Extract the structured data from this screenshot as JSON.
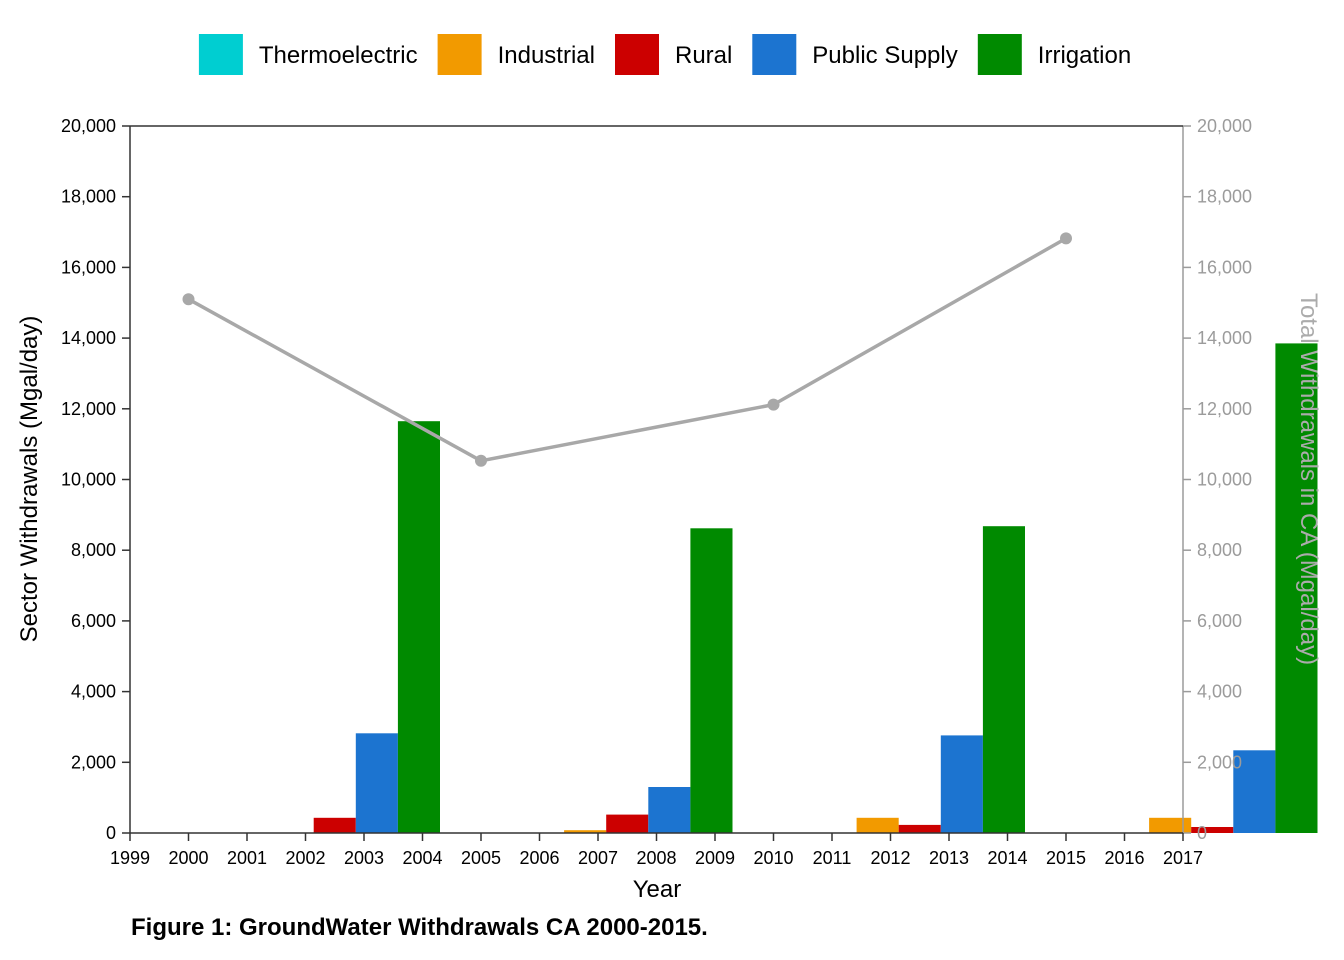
{
  "caption": "Figure 1: GroundWater Withdrawals CA 2000-2015.",
  "chart_data": {
    "type": "bar",
    "title": "",
    "xlabel": "Year",
    "ylabel": "Sector Withdrawals (Mgal/day)",
    "ylabel_right": "Total Withdrawals in CA (Mgal/day)",
    "xlim": [
      1999,
      2017
    ],
    "ylim": [
      0,
      20000
    ],
    "ylim_right": [
      0,
      20000
    ],
    "x_ticks": [
      "1999",
      "2000",
      "2001",
      "2002",
      "2003",
      "2004",
      "2005",
      "2006",
      "2007",
      "2008",
      "2009",
      "2010",
      "2011",
      "2012",
      "2013",
      "2014",
      "2015",
      "2016",
      "2017"
    ],
    "y_ticks": [
      "0",
      "2,000",
      "4,000",
      "6,000",
      "8,000",
      "10,000",
      "12,000",
      "14,000",
      "16,000",
      "18,000",
      "20,000"
    ],
    "legend_position": "top",
    "categories": [
      "2000",
      "2005",
      "2010",
      "2015"
    ],
    "series": [
      {
        "name": "Thermoelectric",
        "color": "#00ced1",
        "values": [
          0,
          0,
          0,
          0
        ]
      },
      {
        "name": "Industrial",
        "color": "#f29a00",
        "values": [
          0,
          80,
          430,
          430
        ]
      },
      {
        "name": "Rural",
        "color": "#cc0000",
        "values": [
          430,
          520,
          230,
          170
        ]
      },
      {
        "name": "Public Supply",
        "color": "#1c74d0",
        "values": [
          2820,
          1300,
          2760,
          2340
        ]
      },
      {
        "name": "Irrigation",
        "color": "#008a00",
        "values": [
          11650,
          8620,
          8680,
          13850
        ]
      }
    ],
    "total_line": {
      "axis": "right",
      "color": "#a8a8a8",
      "x": [
        2000,
        2005,
        2010,
        2015
      ],
      "values": [
        15100,
        10530,
        12120,
        16820
      ]
    }
  }
}
